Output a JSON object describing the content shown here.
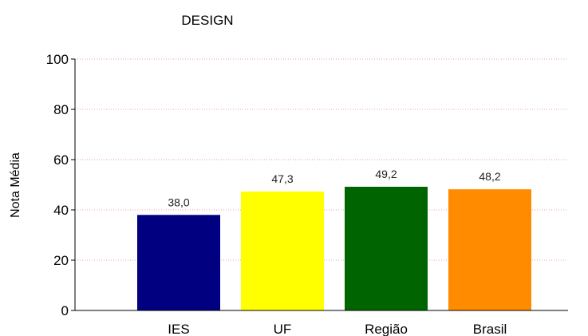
{
  "chart_data": {
    "type": "bar",
    "title": "DESIGN",
    "xlabel": "",
    "ylabel": "Nota Média",
    "categories": [
      "IES",
      "UF",
      "Região",
      "Brasil"
    ],
    "values": [
      38.0,
      47.3,
      49.2,
      48.2
    ],
    "value_labels": [
      "38,0",
      "47,3",
      "49,2",
      "48,2"
    ],
    "colors": [
      "#000080",
      "#ffff00",
      "#006400",
      "#ff8c00"
    ],
    "ylim": [
      0,
      100
    ],
    "yticks": [
      0,
      20,
      40,
      60,
      80,
      100
    ],
    "grid": true,
    "grid_color": "#e8a0a0",
    "legend": "none"
  }
}
